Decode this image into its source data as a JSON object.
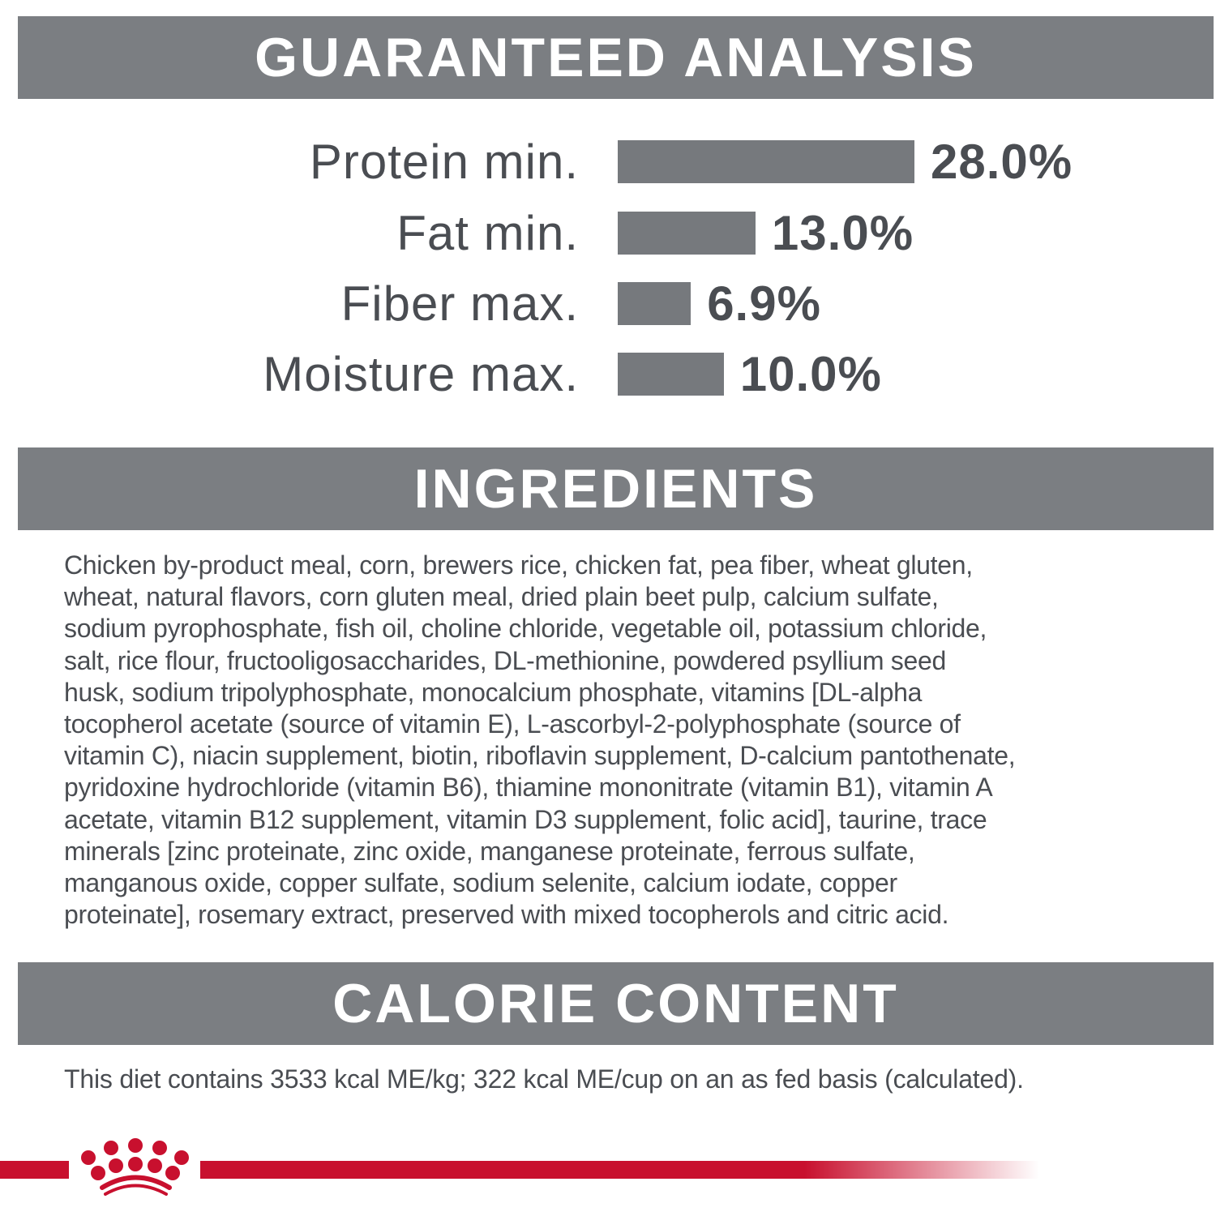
{
  "sections": {
    "analysis_title": "GUARANTEED ANALYSIS",
    "ingredients_title": "INGREDIENTS",
    "calorie_title": "CALORIE CONTENT"
  },
  "analysis": [
    {
      "label": "Protein min.",
      "value": "28.0%",
      "percent": 28.0
    },
    {
      "label": "Fat min.",
      "value": "13.0%",
      "percent": 13.0
    },
    {
      "label": "Fiber max.",
      "value": "6.9%",
      "percent": 6.9
    },
    {
      "label": "Moisture max.",
      "value": "10.0%",
      "percent": 10.0
    }
  ],
  "ingredients_lines": [
    "Chicken by-product meal, corn, brewers rice, chicken fat, pea fiber, wheat gluten,",
    "wheat, natural flavors, corn gluten meal, dried plain beet pulp, calcium sulfate,",
    "sodium pyrophosphate, fish oil, choline chloride, vegetable oil, potassium chloride,",
    "salt, rice flour, fructooligosaccharides, DL-methionine, powdered psyllium seed",
    "husk, sodium tripolyphosphate, monocalcium phosphate, vitamins [DL-alpha",
    "tocopherol acetate (source of vitamin E), L-ascorbyl-2-polyphosphate (source of",
    "vitamin C), niacin supplement, biotin, riboflavin supplement, D-calcium pantothenate,",
    "pyridoxine hydrochloride (vitamin B6), thiamine mononitrate (vitamin B1), vitamin A",
    "acetate, vitamin B12 supplement, vitamin D3 supplement, folic acid], taurine, trace",
    "minerals [zinc proteinate, zinc oxide, manganese proteinate, ferrous sulfate,",
    "manganous oxide, copper sulfate, sodium selenite, calcium iodate, copper",
    "proteinate], rosemary extract, preserved with mixed tocopherols and citric acid."
  ],
  "calorie_text": "This diet contains 3533 kcal ME/kg; 322 kcal ME/cup on an as fed basis (calculated).",
  "colors": {
    "band": "#7b7e82",
    "bar": "#76797d",
    "text": "#4a4d52",
    "brand_red": "#c8102e"
  },
  "logo": {
    "icon": "crown-icon"
  }
}
